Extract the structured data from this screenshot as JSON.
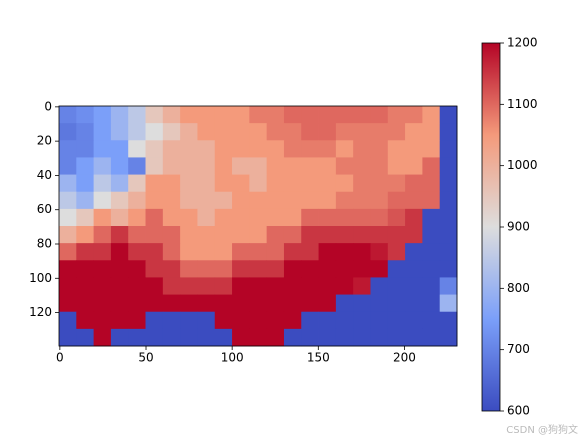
{
  "chart_data": {
    "type": "heatmap",
    "xlim": [
      -0.5,
      230.5
    ],
    "ylim": [
      139.5,
      -0.5
    ],
    "xticks": [
      0,
      50,
      100,
      150,
      200
    ],
    "yticks": [
      0,
      20,
      40,
      60,
      80,
      100,
      120
    ],
    "clim": [
      600,
      1200
    ],
    "cticks": [
      600,
      700,
      800,
      900,
      1000,
      1100,
      1200
    ],
    "colormap": [
      "#3b4cc0",
      "#7b9ff9",
      "#dddddd",
      "#f49a7b",
      "#b40426"
    ],
    "values": [
      [
        700,
        720,
        750,
        800,
        850,
        950,
        1000,
        1050,
        1050,
        1050,
        1050,
        1080,
        1080,
        1100,
        1100,
        1100,
        1100,
        1100,
        1100,
        1080,
        1080,
        1050,
        600
      ],
      [
        680,
        700,
        750,
        800,
        850,
        900,
        950,
        1000,
        1050,
        1050,
        1050,
        1050,
        1080,
        1080,
        1100,
        1100,
        1080,
        1080,
        1080,
        1080,
        1050,
        1050,
        600
      ],
      [
        700,
        700,
        750,
        750,
        900,
        950,
        1000,
        1000,
        1000,
        1050,
        1050,
        1050,
        1050,
        1080,
        1080,
        1080,
        1050,
        1080,
        1080,
        1050,
        1050,
        1050,
        600
      ],
      [
        700,
        750,
        800,
        750,
        700,
        950,
        1000,
        1000,
        1000,
        1050,
        1000,
        1000,
        1050,
        1050,
        1050,
        1050,
        1080,
        1080,
        1080,
        1050,
        1050,
        1100,
        600
      ],
      [
        800,
        750,
        850,
        800,
        950,
        1050,
        1050,
        1000,
        1000,
        1050,
        1050,
        1000,
        1050,
        1050,
        1050,
        1050,
        1050,
        1080,
        1080,
        1080,
        1100,
        1100,
        600
      ],
      [
        850,
        800,
        900,
        950,
        1000,
        1050,
        1050,
        1000,
        1000,
        1000,
        1050,
        1050,
        1050,
        1050,
        1050,
        1050,
        1080,
        1080,
        1080,
        1100,
        1100,
        1100,
        600
      ],
      [
        900,
        950,
        1050,
        1000,
        1050,
        1100,
        1050,
        1050,
        1000,
        1050,
        1050,
        1050,
        1050,
        1050,
        1100,
        1100,
        1100,
        1100,
        1100,
        1120,
        1150,
        600,
        600
      ],
      [
        1000,
        1050,
        1100,
        1150,
        1100,
        1100,
        1100,
        1050,
        1050,
        1050,
        1050,
        1050,
        1100,
        1100,
        1150,
        1150,
        1150,
        1150,
        1150,
        1150,
        1150,
        600,
        600
      ],
      [
        1100,
        1150,
        1150,
        1200,
        1150,
        1150,
        1100,
        1050,
        1050,
        1050,
        1100,
        1100,
        1100,
        1150,
        1150,
        1200,
        1200,
        1200,
        1180,
        1150,
        600,
        600,
        600
      ],
      [
        1200,
        1200,
        1200,
        1200,
        1200,
        1150,
        1150,
        1100,
        1100,
        1100,
        1150,
        1150,
        1150,
        1200,
        1200,
        1200,
        1200,
        1200,
        1200,
        600,
        600,
        600,
        600
      ],
      [
        1200,
        1200,
        1200,
        1200,
        1200,
        1200,
        1150,
        1150,
        1150,
        1150,
        1200,
        1200,
        1200,
        1200,
        1200,
        1200,
        1200,
        1180,
        600,
        600,
        600,
        600,
        700
      ],
      [
        1200,
        1200,
        1200,
        1200,
        1200,
        1200,
        1200,
        1200,
        1200,
        1200,
        1200,
        1200,
        1200,
        1200,
        1200,
        1200,
        600,
        600,
        600,
        600,
        600,
        600,
        800
      ],
      [
        600,
        1200,
        1200,
        1200,
        1200,
        600,
        600,
        600,
        600,
        1200,
        1200,
        1200,
        1200,
        1200,
        600,
        600,
        600,
        600,
        600,
        600,
        600,
        600,
        600
      ],
      [
        600,
        600,
        1200,
        600,
        600,
        600,
        600,
        600,
        600,
        600,
        1200,
        1200,
        1200,
        600,
        600,
        600,
        600,
        600,
        600,
        600,
        600,
        600,
        600
      ]
    ],
    "watermark": "CSDN @狗狗文"
  }
}
